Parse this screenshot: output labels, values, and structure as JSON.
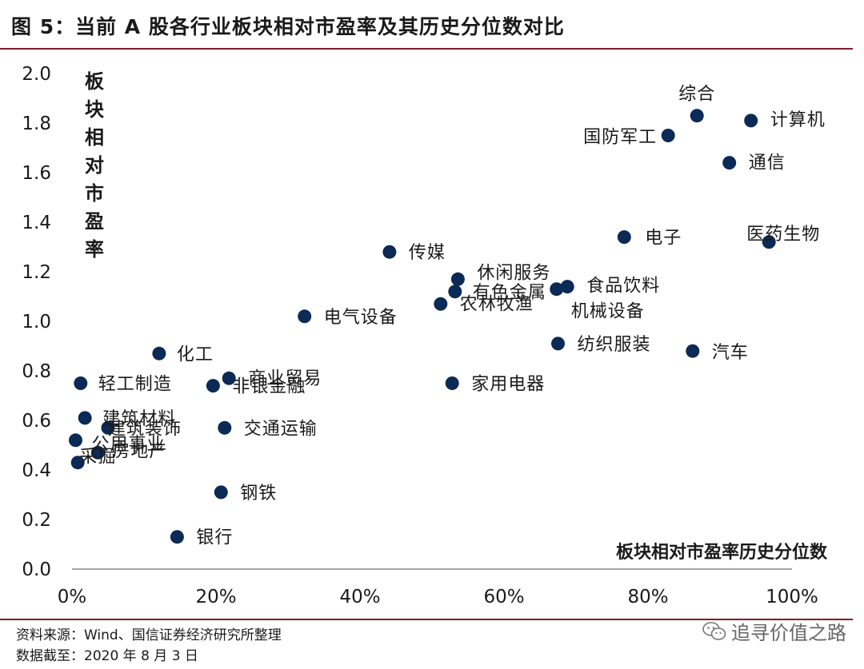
{
  "figure": {
    "title": "图 5：当前 A 股各行业板块相对市盈率及其历史分位数对比",
    "source": "资料来源：Wind、国信证券经济研究所整理",
    "date": "数据截至：2020 年 8 月 3 日",
    "watermark": "追寻价值之路",
    "watermark_icon": "wechat-icon"
  },
  "chart_data": {
    "type": "scatter",
    "xlabel": "板块相对市盈率历史分位数",
    "ylabel": "板块相对市盈率",
    "xlim": [
      0,
      1
    ],
    "ylim": [
      0,
      2.0
    ],
    "xticks": [
      "0%",
      "20%",
      "40%",
      "60%",
      "80%",
      "100%"
    ],
    "yticks": [
      "0.0",
      "0.2",
      "0.4",
      "0.6",
      "0.8",
      "1.0",
      "1.2",
      "1.4",
      "1.6",
      "1.8",
      "2.0"
    ],
    "marker_color": "#0b2a55",
    "grid": false,
    "points": [
      {
        "label": "综合",
        "x": 0.868,
        "y": 1.83
      },
      {
        "label": "计算机",
        "x": 0.943,
        "y": 1.81
      },
      {
        "label": "国防军工",
        "x": 0.828,
        "y": 1.75
      },
      {
        "label": "通信",
        "x": 0.913,
        "y": 1.64
      },
      {
        "label": "医药生物",
        "x": 0.968,
        "y": 1.32
      },
      {
        "label": "电子",
        "x": 0.767,
        "y": 1.34
      },
      {
        "label": "传媒",
        "x": 0.441,
        "y": 1.28
      },
      {
        "label": "休闲服务",
        "x": 0.536,
        "y": 1.17
      },
      {
        "label": "有色金属",
        "x": 0.532,
        "y": 1.12
      },
      {
        "label": "食品饮料",
        "x": 0.688,
        "y": 1.14
      },
      {
        "label": "农林牧渔",
        "x": 0.512,
        "y": 1.07
      },
      {
        "label": "机械设备",
        "x": 0.673,
        "y": 1.13
      },
      {
        "label": "电气设备",
        "x": 0.323,
        "y": 1.02
      },
      {
        "label": "纺织服装",
        "x": 0.675,
        "y": 0.91
      },
      {
        "label": "汽车",
        "x": 0.862,
        "y": 0.88
      },
      {
        "label": "化工",
        "x": 0.121,
        "y": 0.87
      },
      {
        "label": "商业贸易",
        "x": 0.218,
        "y": 0.77
      },
      {
        "label": "非银金融",
        "x": 0.196,
        "y": 0.74
      },
      {
        "label": "轻工制造",
        "x": 0.012,
        "y": 0.75
      },
      {
        "label": "家用电器",
        "x": 0.528,
        "y": 0.75
      },
      {
        "label": "建筑材料",
        "x": 0.018,
        "y": 0.61
      },
      {
        "label": "建筑装饰",
        "x": 0.05,
        "y": 0.57
      },
      {
        "label": "交通运输",
        "x": 0.212,
        "y": 0.57
      },
      {
        "label": "公用事业",
        "x": 0.005,
        "y": 0.52
      },
      {
        "label": "房地产",
        "x": 0.036,
        "y": 0.47
      },
      {
        "label": "采掘",
        "x": 0.008,
        "y": 0.43
      },
      {
        "label": "钢铁",
        "x": 0.207,
        "y": 0.31
      },
      {
        "label": "银行",
        "x": 0.146,
        "y": 0.13
      }
    ]
  }
}
